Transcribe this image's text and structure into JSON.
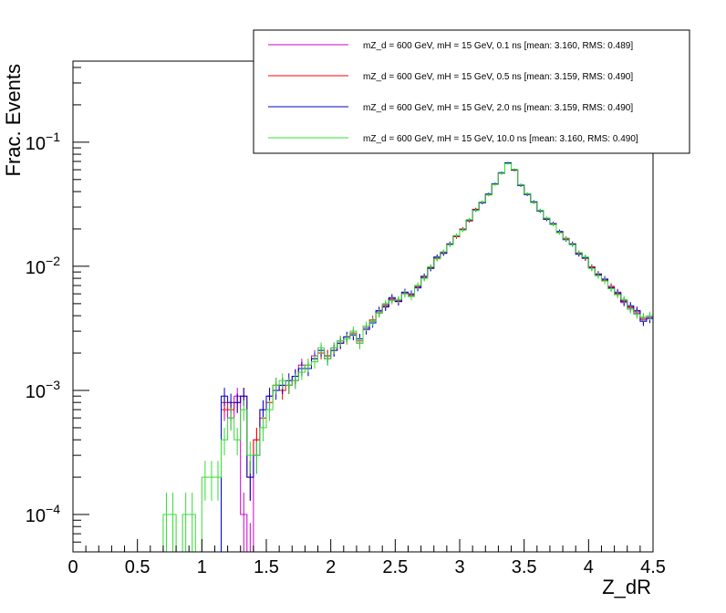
{
  "chart_data": {
    "type": "line",
    "style": "step-histogram-with-error-bars",
    "xlabel": "Z_dR",
    "ylabel": "Frac. Events",
    "xlim": [
      0,
      4.5
    ],
    "ylim": [
      5e-05,
      0.45
    ],
    "y_scale": "log",
    "x_ticks": [
      0,
      0.5,
      1,
      1.5,
      2,
      2.5,
      3,
      3.5,
      4,
      4.5
    ],
    "x_tick_labels": [
      "0",
      "0.5",
      "1",
      "1.5",
      "2",
      "2.5",
      "3",
      "3.5",
      "4",
      "4.5"
    ],
    "y_ticks": [
      0.0001,
      0.001,
      0.01,
      0.1
    ],
    "y_tick_labels": [
      {
        "base": "10",
        "exp": "−4"
      },
      {
        "base": "10",
        "exp": "−3"
      },
      {
        "base": "10",
        "exp": "−2"
      },
      {
        "base": "10",
        "exp": "−1"
      }
    ],
    "grid": false,
    "legend_position": "top-right",
    "bin_width": 0.05,
    "x": [
      0.025,
      0.075,
      0.125,
      0.175,
      0.225,
      0.275,
      0.325,
      0.375,
      0.425,
      0.475,
      0.525,
      0.575,
      0.625,
      0.675,
      0.725,
      0.775,
      0.825,
      0.875,
      0.925,
      0.975,
      1.025,
      1.075,
      1.125,
      1.175,
      1.225,
      1.275,
      1.325,
      1.375,
      1.425,
      1.475,
      1.525,
      1.575,
      1.625,
      1.675,
      1.725,
      1.775,
      1.825,
      1.875,
      1.925,
      1.975,
      2.025,
      2.075,
      2.125,
      2.175,
      2.225,
      2.275,
      2.325,
      2.375,
      2.425,
      2.475,
      2.525,
      2.575,
      2.625,
      2.675,
      2.725,
      2.775,
      2.825,
      2.875,
      2.925,
      2.975,
      3.025,
      3.075,
      3.125,
      3.175,
      3.225,
      3.275,
      3.325,
      3.375,
      3.425,
      3.475,
      3.525,
      3.575,
      3.625,
      3.675,
      3.725,
      3.775,
      3.825,
      3.875,
      3.925,
      3.975,
      4.025,
      4.075,
      4.125,
      4.175,
      4.225,
      4.275,
      4.325,
      4.375,
      4.425,
      4.475
    ],
    "series": [
      {
        "name": "mZ_d = 600 GeV, mH = 15 GeV, 0.1 ns [mean: 3.160, RMS: 0.489]",
        "color": "#cc00cc",
        "values": [
          0,
          0,
          0,
          0,
          0,
          0,
          0,
          0,
          0,
          0,
          0,
          0,
          0,
          0,
          0,
          0,
          0,
          0,
          0,
          0,
          0,
          0,
          0,
          0.0007,
          0.0006,
          0.0009,
          0.0001,
          5e-05,
          0.0004,
          0.0007,
          0.0009,
          0.0011,
          0.0011,
          0.0011,
          0.0012,
          0.0016,
          0.0015,
          0.0019,
          0.0021,
          0.0019,
          0.0022,
          0.0025,
          0.0027,
          0.0028,
          0.0024,
          0.0032,
          0.0036,
          0.0043,
          0.0049,
          0.0055,
          0.0052,
          0.0061,
          0.0058,
          0.0068,
          0.0082,
          0.0098,
          0.0118,
          0.0128,
          0.0152,
          0.0175,
          0.0198,
          0.0235,
          0.0285,
          0.0325,
          0.038,
          0.046,
          0.056,
          0.068,
          0.06,
          0.045,
          0.038,
          0.033,
          0.028,
          0.024,
          0.022,
          0.019,
          0.0165,
          0.0152,
          0.0125,
          0.0118,
          0.0098,
          0.0085,
          0.0078,
          0.0068,
          0.0062,
          0.0051,
          0.0046,
          0.0042,
          0.0037,
          0.0039
        ]
      },
      {
        "name": "mZ_d = 600 GeV, mH = 15 GeV, 0.5 ns [mean: 3.159, RMS: 0.490]",
        "color": "#ff0000",
        "values": [
          0,
          0,
          0,
          0,
          0,
          0,
          0,
          0,
          0,
          0,
          0,
          0,
          0,
          0,
          0,
          0,
          0,
          0,
          0,
          0,
          0,
          0,
          0,
          0.0008,
          0.0007,
          0.0008,
          0.0009,
          0.0002,
          0.0004,
          0.0006,
          0.0008,
          0.0011,
          0.001,
          0.0011,
          0.0013,
          0.0015,
          0.0016,
          0.0018,
          0.002,
          0.0019,
          0.0021,
          0.0024,
          0.0026,
          0.0029,
          0.0025,
          0.0031,
          0.0037,
          0.0042,
          0.0048,
          0.0054,
          0.0053,
          0.006,
          0.0059,
          0.0069,
          0.0081,
          0.0097,
          0.0116,
          0.013,
          0.015,
          0.0173,
          0.02,
          0.0232,
          0.0288,
          0.0328,
          0.0378,
          0.0458,
          0.0565,
          0.0675,
          0.0595,
          0.0452,
          0.0382,
          0.0328,
          0.0282,
          0.0242,
          0.0218,
          0.0188,
          0.0168,
          0.015,
          0.0128,
          0.0116,
          0.0099,
          0.0087,
          0.0077,
          0.0069,
          0.006,
          0.0053,
          0.0047,
          0.0043,
          0.0038,
          0.0038
        ]
      },
      {
        "name": "mZ_d = 600 GeV, mH = 15 GeV, 2.0 ns [mean: 3.159, RMS: 0.490]",
        "color": "#0000cc",
        "values": [
          0,
          0,
          0,
          0,
          0,
          0,
          0,
          0,
          0,
          0,
          0,
          0,
          0,
          0,
          0,
          0,
          0,
          0,
          0,
          0,
          0,
          0,
          0,
          0.0009,
          0.0008,
          0.0008,
          0.0009,
          0.0002,
          0.0003,
          0.0007,
          0.0009,
          0.001,
          0.0011,
          0.0012,
          0.0013,
          0.0015,
          0.0015,
          0.0018,
          0.0021,
          0.0018,
          0.0021,
          0.0024,
          0.0027,
          0.0028,
          0.0026,
          0.0031,
          0.0035,
          0.0044,
          0.0047,
          0.0056,
          0.0052,
          0.0062,
          0.006,
          0.0067,
          0.0083,
          0.0096,
          0.0119,
          0.0127,
          0.0151,
          0.0176,
          0.0197,
          0.0236,
          0.0284,
          0.0326,
          0.0382,
          0.0462,
          0.0568,
          0.0682,
          0.0598,
          0.0448,
          0.0379,
          0.0331,
          0.0279,
          0.0239,
          0.0221,
          0.0191,
          0.0164,
          0.0151,
          0.0126,
          0.0117,
          0.0097,
          0.0086,
          0.0079,
          0.0067,
          0.0061,
          0.0052,
          0.0048,
          0.0044,
          0.0036,
          0.0038
        ]
      },
      {
        "name": "mZ_d = 600 GeV, mH = 15 GeV, 10.0 ns [mean: 3.160, RMS: 0.490]",
        "color": "#33dd33",
        "values": [
          0,
          0,
          0,
          0,
          0,
          0,
          0,
          0,
          0,
          0,
          0,
          0,
          0,
          0,
          0.0001,
          0.0001,
          0,
          0.0001,
          0.0001,
          0,
          0.0002,
          0.0002,
          0.0002,
          0.0004,
          0.0006,
          0.0004,
          0.0007,
          0.0003,
          0.0003,
          0.0005,
          0.0007,
          0.0011,
          0.0012,
          0.0011,
          0.0012,
          0.0014,
          0.0016,
          0.0017,
          0.0022,
          0.0018,
          0.0022,
          0.0025,
          0.0026,
          0.003,
          0.0024,
          0.0033,
          0.0036,
          0.0042,
          0.005,
          0.0053,
          0.0054,
          0.006,
          0.0057,
          0.007,
          0.008,
          0.0099,
          0.0115,
          0.0131,
          0.0149,
          0.0177,
          0.0196,
          0.0238,
          0.0282,
          0.033,
          0.0376,
          0.0456,
          0.0562,
          0.0672,
          0.0605,
          0.0455,
          0.0385,
          0.0326,
          0.0283,
          0.0245,
          0.0217,
          0.0186,
          0.0166,
          0.0149,
          0.0129,
          0.0119,
          0.0096,
          0.0084,
          0.0076,
          0.0066,
          0.0059,
          0.0054,
          0.0045,
          0.0041,
          0.0039,
          0.004
        ]
      }
    ]
  }
}
